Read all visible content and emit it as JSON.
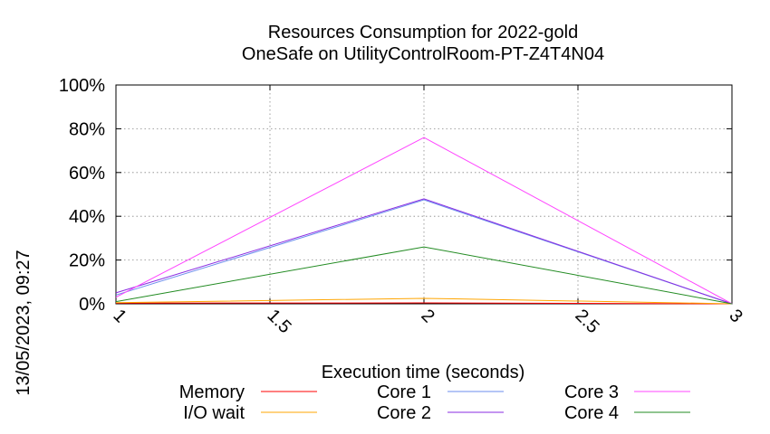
{
  "chart_data": {
    "type": "line",
    "title": "Resources Consumption for 2022-gold",
    "subtitle": "OneSafe on UtilityControlRoom-PT-Z4T4N04",
    "xlabel": "Execution time (seconds)",
    "ylabel": "",
    "side_label": "13/05/2023, 09:27",
    "x": [
      1,
      2,
      3
    ],
    "xlim": [
      1,
      3
    ],
    "ylim": [
      0,
      100
    ],
    "x_ticks": [
      1,
      1.5,
      2,
      2.5,
      3
    ],
    "x_tick_labels": [
      "1",
      "1.5",
      "2",
      "2.5",
      "3"
    ],
    "y_ticks": [
      0,
      20,
      40,
      60,
      80,
      100
    ],
    "y_tick_labels": [
      "0%",
      "20%",
      "40%",
      "60%",
      "80%",
      "100%"
    ],
    "grid": true,
    "legend_position": "bottom",
    "series": [
      {
        "name": "Memory",
        "color": "#ff0000",
        "values": [
          0.3,
          0.4,
          0
        ]
      },
      {
        "name": "I/O wait",
        "color": "#ffa500",
        "values": [
          0.5,
          2.5,
          0
        ]
      },
      {
        "name": "Core 1",
        "color": "#6b8ced",
        "values": [
          4.0,
          47.5,
          0
        ]
      },
      {
        "name": "Core 2",
        "color": "#8a2be2",
        "values": [
          5.0,
          48.0,
          0
        ]
      },
      {
        "name": "Core 3",
        "color": "#ff44ff",
        "values": [
          3.0,
          76.0,
          0
        ]
      },
      {
        "name": "Core 4",
        "color": "#228b22",
        "values": [
          1.0,
          26.0,
          0
        ]
      }
    ]
  }
}
